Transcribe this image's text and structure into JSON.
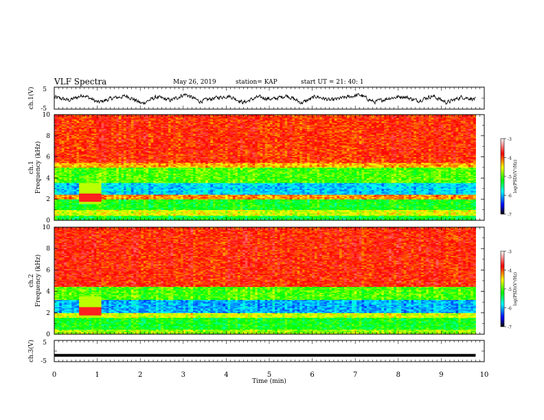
{
  "header": {
    "title": "VLF Spectra",
    "date": "May 26, 2019",
    "station": "station= KAP",
    "start": "start UT =  21: 40: 1"
  },
  "chart_data": [
    {
      "type": "line",
      "ylabel": "ch.1(V)",
      "ylim": [
        -5,
        5
      ],
      "yticks": [
        5,
        -5
      ],
      "x_range_min": [
        0,
        9.8
      ],
      "description_values": "noisy waveform oscillating roughly between -3 and +2 V",
      "approx_y": [
        0.5,
        -1,
        1.5,
        -2,
        0,
        1,
        -2.5,
        0.5,
        -1,
        1.8,
        -1.5,
        0,
        1,
        -2,
        0.5,
        -0.5,
        1.2,
        -2.2,
        0.8,
        -1,
        0.3,
        1.5,
        -1.8,
        0,
        0.8,
        -1.2,
        1,
        -2,
        0.5,
        -0.5
      ]
    },
    {
      "type": "heatmap",
      "ylabel": "ch.1\nFrequency (kHz)",
      "yticks": [
        0,
        2,
        4,
        6,
        8,
        10
      ],
      "ylim": [
        0,
        10
      ],
      "xlim": [
        0,
        10
      ],
      "data_extent_min": [
        0,
        9.8
      ],
      "colorbar": {
        "label": "log(PSD)(V²/Hz)",
        "ticks": [
          -3,
          -4,
          -5,
          -6,
          -7
        ],
        "range": [
          -7,
          -3
        ]
      },
      "bands_khz_log": [
        {
          "from": 0,
          "to": 0.5,
          "value": -5.3
        },
        {
          "from": 0.5,
          "to": 1.0,
          "value": -4.6
        },
        {
          "from": 1.0,
          "to": 2.0,
          "value": -5.2
        },
        {
          "from": 2.0,
          "to": 2.4,
          "value": -4.2
        },
        {
          "from": 2.4,
          "to": 3.6,
          "value": -5.9
        },
        {
          "from": 3.6,
          "to": 5.0,
          "value": -5.0
        },
        {
          "from": 5.0,
          "to": 5.5,
          "value": -4.3
        },
        {
          "from": 5.5,
          "to": 10,
          "value": -3.9
        }
      ]
    },
    {
      "type": "heatmap",
      "ylabel": "ch.2\nFrequency (kHz)",
      "yticks": [
        0,
        2,
        4,
        6,
        8,
        10
      ],
      "ylim": [
        0,
        10
      ],
      "xlim": [
        0,
        10
      ],
      "data_extent_min": [
        0,
        9.8
      ],
      "colorbar": {
        "label": "log(PSD)(V²/Hz)",
        "ticks": [
          -3,
          -4,
          -5,
          -6,
          -7
        ],
        "range": [
          -7,
          -3
        ]
      },
      "bands_khz_log": [
        {
          "from": 0,
          "to": 0.5,
          "value": -4.8
        },
        {
          "from": 0.5,
          "to": 1.6,
          "value": -5.2
        },
        {
          "from": 1.6,
          "to": 2.0,
          "value": -4.6
        },
        {
          "from": 2.0,
          "to": 3.2,
          "value": -6.0
        },
        {
          "from": 3.2,
          "to": 4.5,
          "value": -5.0
        },
        {
          "from": 4.5,
          "to": 10,
          "value": -3.85
        }
      ]
    },
    {
      "type": "line",
      "ylabel": "ch.3(V)",
      "ylim": [
        -5,
        5
      ],
      "yticks": [
        5,
        -5
      ],
      "x_range_min": [
        0,
        9.8
      ],
      "approx_y": [
        -2,
        -2
      ]
    }
  ],
  "xaxis": {
    "label": "Time (min)",
    "ticks": [
      0,
      1,
      2,
      3,
      4,
      5,
      6,
      7,
      8,
      9,
      10
    ],
    "xlim": [
      0,
      10
    ]
  }
}
